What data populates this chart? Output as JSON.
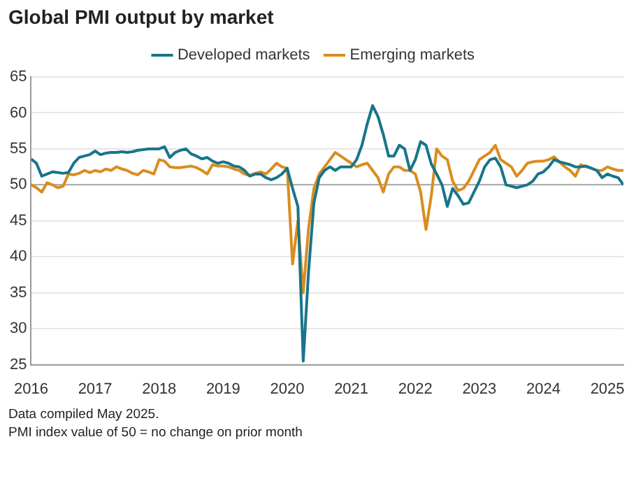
{
  "chart_data": {
    "type": "line",
    "title": "Global PMI output by market",
    "x": [
      "2016-01",
      "2016-02",
      "2016-03",
      "2016-04",
      "2016-05",
      "2016-06",
      "2016-07",
      "2016-08",
      "2016-09",
      "2016-10",
      "2016-11",
      "2016-12",
      "2017-01",
      "2017-02",
      "2017-03",
      "2017-04",
      "2017-05",
      "2017-06",
      "2017-07",
      "2017-08",
      "2017-09",
      "2017-10",
      "2017-11",
      "2017-12",
      "2018-01",
      "2018-02",
      "2018-03",
      "2018-04",
      "2018-05",
      "2018-06",
      "2018-07",
      "2018-08",
      "2018-09",
      "2018-10",
      "2018-11",
      "2018-12",
      "2019-01",
      "2019-02",
      "2019-03",
      "2019-04",
      "2019-05",
      "2019-06",
      "2019-07",
      "2019-08",
      "2019-09",
      "2019-10",
      "2019-11",
      "2019-12",
      "2020-01",
      "2020-02",
      "2020-03",
      "2020-04",
      "2020-05",
      "2020-06",
      "2020-07",
      "2020-08",
      "2020-09",
      "2020-10",
      "2020-11",
      "2020-12",
      "2021-01",
      "2021-02",
      "2021-03",
      "2021-04",
      "2021-05",
      "2021-06",
      "2021-07",
      "2021-08",
      "2021-09",
      "2021-10",
      "2021-11",
      "2021-12",
      "2022-01",
      "2022-02",
      "2022-03",
      "2022-04",
      "2022-05",
      "2022-06",
      "2022-07",
      "2022-08",
      "2022-09",
      "2022-10",
      "2022-11",
      "2022-12",
      "2023-01",
      "2023-02",
      "2023-03",
      "2023-04",
      "2023-05",
      "2023-06",
      "2023-07",
      "2023-08",
      "2023-09",
      "2023-10",
      "2023-11",
      "2023-12",
      "2024-01",
      "2024-02",
      "2024-03",
      "2024-04",
      "2024-05",
      "2024-06",
      "2024-07",
      "2024-08",
      "2024-09",
      "2024-10",
      "2024-11",
      "2024-12",
      "2025-01",
      "2025-02",
      "2025-03",
      "2025-04"
    ],
    "series": [
      {
        "name": "Developed markets",
        "color": "#17758a",
        "values": [
          53.6,
          53.0,
          51.2,
          51.5,
          51.8,
          51.7,
          51.6,
          51.7,
          53.0,
          53.8,
          54.0,
          54.2,
          54.7,
          54.2,
          54.4,
          54.5,
          54.5,
          54.6,
          54.5,
          54.6,
          54.8,
          54.9,
          55.0,
          55.0,
          55.0,
          55.3,
          53.8,
          54.5,
          54.8,
          55.0,
          54.3,
          54.0,
          53.6,
          53.8,
          53.3,
          53.0,
          53.2,
          53.0,
          52.6,
          52.5,
          52.0,
          51.2,
          51.5,
          51.5,
          51.0,
          50.7,
          51.0,
          51.5,
          52.3,
          49.5,
          47.0,
          25.5,
          38.0,
          47.5,
          51.0,
          52.0,
          52.5,
          52.0,
          52.5,
          52.5,
          52.5,
          53.5,
          55.5,
          58.5,
          61.0,
          59.5,
          57.0,
          54.0,
          54.0,
          55.5,
          55.0,
          52.0,
          53.5,
          56.0,
          55.5,
          52.9,
          51.5,
          50.0,
          47.0,
          49.5,
          48.5,
          47.3,
          47.5,
          49.0,
          50.5,
          52.5,
          53.5,
          53.7,
          52.5,
          50.0,
          49.8,
          49.6,
          49.8,
          50.0,
          50.5,
          51.5,
          51.8,
          52.5,
          53.5,
          53.2,
          53.0,
          52.8,
          52.5,
          52.5,
          52.6,
          52.3,
          52.0,
          51.0,
          51.5,
          51.2,
          51.0,
          50.0
        ]
      },
      {
        "name": "Emerging markets",
        "color": "#d98d1f",
        "values": [
          50.0,
          49.6,
          49.0,
          50.3,
          50.0,
          49.6,
          49.8,
          51.5,
          51.4,
          51.6,
          52.0,
          51.7,
          52.0,
          51.8,
          52.2,
          52.0,
          52.5,
          52.2,
          52.0,
          51.6,
          51.4,
          52.0,
          51.8,
          51.5,
          53.5,
          53.3,
          52.5,
          52.4,
          52.4,
          52.5,
          52.6,
          52.4,
          52.0,
          51.5,
          52.8,
          52.6,
          52.6,
          52.5,
          52.2,
          52.0,
          51.5,
          51.3,
          51.6,
          51.8,
          51.5,
          52.2,
          53.0,
          52.5,
          52.3,
          39.0,
          45.0,
          35.0,
          44.0,
          49.5,
          51.5,
          52.5,
          53.5,
          54.5,
          54.0,
          53.5,
          53.0,
          52.5,
          52.8,
          53.0,
          52.0,
          51.0,
          49.0,
          51.5,
          52.5,
          52.5,
          52.0,
          52.0,
          51.5,
          49.0,
          43.8,
          48.5,
          55.0,
          54.0,
          53.5,
          50.5,
          49.2,
          49.5,
          50.5,
          52.0,
          53.5,
          54.0,
          54.5,
          55.5,
          53.5,
          53.0,
          52.5,
          51.2,
          52.0,
          53.0,
          53.2,
          53.3,
          53.3,
          53.5,
          53.9,
          53.2,
          52.5,
          52.0,
          51.2,
          52.8,
          52.5,
          52.3,
          52.0,
          52.0,
          52.5,
          52.2,
          52.0,
          52.0
        ]
      }
    ],
    "xlim": [
      "2016-01",
      "2025-04"
    ],
    "xticks": [
      {
        "value": "2016",
        "label": "2016"
      },
      {
        "value": "2017",
        "label": "2017"
      },
      {
        "value": "2018",
        "label": "2018"
      },
      {
        "value": "2019",
        "label": "2019"
      },
      {
        "value": "2020",
        "label": "2020"
      },
      {
        "value": "2021",
        "label": "2021"
      },
      {
        "value": "2022",
        "label": "2022"
      },
      {
        "value": "2023",
        "label": "2023"
      },
      {
        "value": "2024",
        "label": "2024"
      },
      {
        "value": "2025",
        "label": "2025"
      }
    ],
    "ylim": [
      25,
      65
    ],
    "yticks": [
      25,
      30,
      35,
      40,
      45,
      50,
      55,
      60,
      65
    ],
    "ref_lines": [
      {
        "axis": "y",
        "value": 50,
        "color": "#a6a6a6"
      }
    ],
    "grid": "y",
    "legend": "top",
    "marker": "none",
    "line_style": "solid",
    "annotations": [
      "Data compiled May 2025.",
      "PMI index value of 50 = no change on prior month"
    ]
  }
}
